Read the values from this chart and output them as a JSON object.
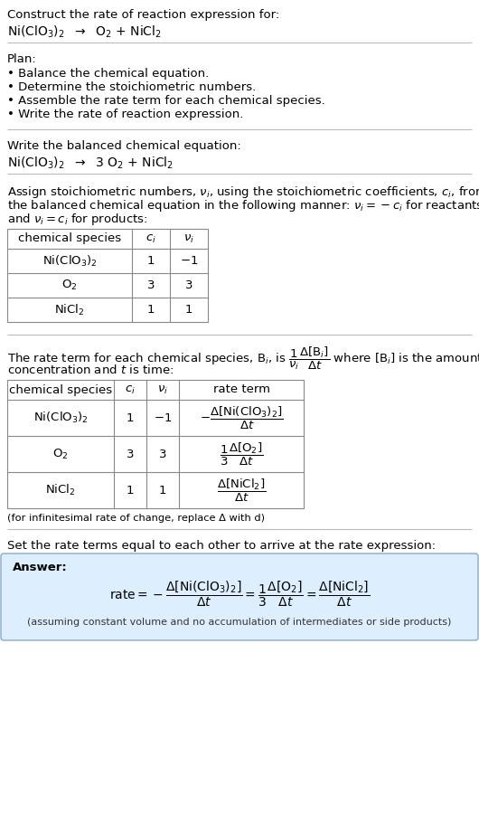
{
  "title_text": "Construct the rate of reaction expression for:",
  "reaction_unbalanced": "Ni(ClO$_3$)$_2$  $\\rightarrow$  O$_2$ + NiCl$_2$",
  "plan_title": "Plan:",
  "plan_steps": [
    "• Balance the chemical equation.",
    "• Determine the stoichiometric numbers.",
    "• Assemble the rate term for each chemical species.",
    "• Write the rate of reaction expression."
  ],
  "balanced_eq_label": "Write the balanced chemical equation:",
  "reaction_balanced": "Ni(ClO$_3$)$_2$  $\\rightarrow$  3 O$_2$ + NiCl$_2$",
  "stoich_intro_1": "Assign stoichiometric numbers, $\\nu_i$, using the stoichiometric coefficients, $c_i$, from",
  "stoich_intro_2": "the balanced chemical equation in the following manner: $\\nu_i = -c_i$ for reactants",
  "stoich_intro_3": "and $\\nu_i = c_i$ for products:",
  "table1_headers": [
    "chemical species",
    "$c_i$",
    "$\\nu_i$"
  ],
  "table1_rows": [
    [
      "Ni(ClO$_3$)$_2$",
      "1",
      "$-1$"
    ],
    [
      "O$_2$",
      "3",
      "3"
    ],
    [
      "NiCl$_2$",
      "1",
      "1"
    ]
  ],
  "rate_intro_1": "The rate term for each chemical species, B$_i$, is $\\dfrac{1}{\\nu_i}\\dfrac{\\Delta[\\mathrm{B}_i]}{\\Delta t}$ where [B$_i$] is the amount",
  "rate_intro_2": "concentration and $t$ is time:",
  "table2_headers": [
    "chemical species",
    "$c_i$",
    "$\\nu_i$",
    "rate term"
  ],
  "table2_rows": [
    [
      "Ni(ClO$_3$)$_2$",
      "1",
      "$-1$",
      "$-\\dfrac{\\Delta[\\mathrm{Ni(ClO_3)_2}]}{\\Delta t}$"
    ],
    [
      "O$_2$",
      "3",
      "3",
      "$\\dfrac{1}{3}\\dfrac{\\Delta[\\mathrm{O_2}]}{\\Delta t}$"
    ],
    [
      "NiCl$_2$",
      "1",
      "1",
      "$\\dfrac{\\Delta[\\mathrm{NiCl_2}]}{\\Delta t}$"
    ]
  ],
  "infinitesimal_note": "(for infinitesimal rate of change, replace Δ with d)",
  "rate_expr_intro": "Set the rate terms equal to each other to arrive at the rate expression:",
  "answer_box_color": "#ddeeff",
  "answer_label": "Answer:",
  "rate_expression": "$\\mathrm{rate} = -\\dfrac{\\Delta[\\mathrm{Ni(ClO_3)_2}]}{\\Delta t} = \\dfrac{1}{3}\\dfrac{\\Delta[\\mathrm{O_2}]}{\\Delta t} = \\dfrac{\\Delta[\\mathrm{NiCl_2}]}{\\Delta t}$",
  "assumption_note": "(assuming constant volume and no accumulation of intermediates or side products)",
  "bg_color": "#ffffff",
  "text_color": "#000000"
}
